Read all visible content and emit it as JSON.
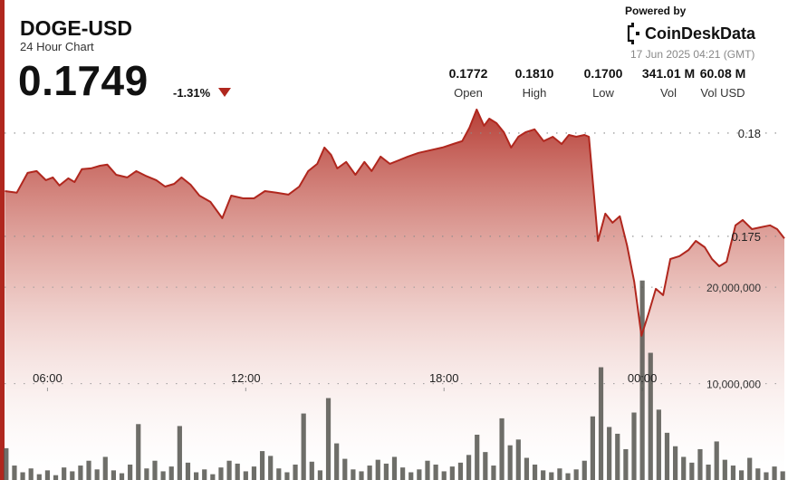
{
  "header": {
    "symbol": "DOGE-USD",
    "subtitle": "24 Hour Chart",
    "price": "0.1749",
    "change": "-1.31%",
    "powered_by": "Powered by",
    "brand": "CoinDeskData",
    "timestamp": "17 Jun 2025 04:21 (GMT)",
    "stats": [
      {
        "value": "0.1772",
        "label": "Open"
      },
      {
        "value": "0.1810",
        "label": "High"
      },
      {
        "value": "0.1700",
        "label": "Low"
      },
      {
        "value": "341.01 M",
        "label": "Vol"
      },
      {
        "value": "60.08 M",
        "label": "Vol USD"
      }
    ]
  },
  "chart_data": [
    {
      "type": "line",
      "color": "#b0271e",
      "x": [
        4.71,
        5.07,
        5.4,
        5.67,
        5.95,
        6.16,
        6.36,
        6.63,
        6.82,
        7.04,
        7.315,
        7.59,
        7.81,
        8.08,
        8.41,
        8.685,
        8.96,
        9.29,
        9.56,
        9.835,
        10.055,
        10.33,
        10.6,
        10.93,
        11.29,
        11.56,
        11.92,
        12.25,
        12.58,
        12.93,
        13.29,
        13.62,
        13.89,
        14.165,
        14.38,
        14.58,
        14.77,
        15.04,
        15.32,
        15.59,
        15.81,
        16.08,
        16.36,
        16.63,
        16.905,
        17.23,
        17.59,
        17.95,
        18.275,
        18.55,
        18.77,
        18.99,
        19.21,
        19.37,
        19.59,
        19.81,
        20.03,
        20.25,
        20.47,
        20.74,
        21.015,
        21.29,
        21.56,
        21.78,
        22.0,
        22.25,
        22.385,
        22.66,
        22.88,
        23.1,
        23.32,
        23.54,
        23.755,
        23.975,
        24.19,
        24.41,
        24.63,
        24.85,
        25.125,
        25.4,
        25.62,
        25.89,
        26.11,
        26.33,
        26.55,
        26.82,
        27.04,
        27.32,
        27.59,
        27.865,
        28.08,
        28.3
      ],
      "values": [
        0.17719,
        0.17711,
        0.17807,
        0.17816,
        0.17772,
        0.17785,
        0.17746,
        0.17781,
        0.17763,
        0.17825,
        0.17829,
        0.17842,
        0.17847,
        0.17798,
        0.17785,
        0.17816,
        0.17794,
        0.17772,
        0.17741,
        0.17754,
        0.17785,
        0.1775,
        0.17697,
        0.17667,
        0.17588,
        0.17697,
        0.17684,
        0.17684,
        0.17719,
        0.17711,
        0.17702,
        0.17741,
        0.17816,
        0.17851,
        0.1793,
        0.17895,
        0.17829,
        0.1786,
        0.17798,
        0.1786,
        0.17816,
        0.17886,
        0.17851,
        0.17868,
        0.17886,
        0.17904,
        0.17917,
        0.1793,
        0.17947,
        0.17961,
        0.18026,
        0.18114,
        0.18035,
        0.1807,
        0.18048,
        0.18004,
        0.1793,
        0.17982,
        0.18004,
        0.18018,
        0.17961,
        0.17982,
        0.17947,
        0.17991,
        0.17982,
        0.17991,
        0.17982,
        0.17478,
        0.1761,
        0.17566,
        0.17597,
        0.17456,
        0.17281,
        0.17018,
        0.17127,
        0.17246,
        0.17215,
        0.1739,
        0.17404,
        0.17434,
        0.17478,
        0.17447,
        0.1739,
        0.17355,
        0.17377,
        0.17553,
        0.17579,
        0.17535,
        0.17544,
        0.17553,
        0.17535,
        0.1749
      ],
      "xlim": [
        4.7,
        28.3
      ],
      "xticks": [
        {
          "value": 6,
          "label": "06:00"
        },
        {
          "value": 12,
          "label": "12:00"
        },
        {
          "value": 18,
          "label": "18:00"
        },
        {
          "value": 24,
          "label": "00:00"
        }
      ],
      "ylim": [
        0.1632,
        0.1814
      ],
      "yticks": [
        0.175,
        0.18
      ],
      "grid": true
    },
    {
      "type": "bar",
      "color": "#55554f",
      "x": [
        4.75,
        5,
        5.25,
        5.5,
        5.75,
        6,
        6.25,
        6.5,
        6.75,
        7,
        7.25,
        7.5,
        7.75,
        8,
        8.25,
        8.5,
        8.75,
        9,
        9.25,
        9.5,
        9.75,
        10,
        10.25,
        10.5,
        10.75,
        11,
        11.25,
        11.5,
        11.75,
        12,
        12.25,
        12.5,
        12.75,
        13,
        13.25,
        13.5,
        13.75,
        14,
        14.25,
        14.5,
        14.75,
        15,
        15.25,
        15.5,
        15.75,
        16,
        16.25,
        16.5,
        16.75,
        17,
        17.25,
        17.5,
        17.75,
        18,
        18.25,
        18.5,
        18.75,
        19,
        19.25,
        19.5,
        19.75,
        20,
        20.25,
        20.5,
        20.75,
        21,
        21.25,
        21.5,
        21.75,
        22,
        22.25,
        22.5,
        22.75,
        23,
        23.25,
        23.5,
        23.75,
        24,
        24.25,
        24.5,
        24.75,
        25,
        25.25,
        25.5,
        25.75,
        26,
        26.25,
        26.5,
        26.75,
        27,
        27.25,
        27.5,
        27.75,
        28,
        28.25
      ],
      "values": [
        3300000,
        1500000,
        800000,
        1200000,
        600000,
        1000000,
        500000,
        1300000,
        900000,
        1500000,
        2000000,
        1100000,
        2400000,
        1000000,
        700000,
        1600000,
        5800000,
        1200000,
        2000000,
        900000,
        1400000,
        5600000,
        1800000,
        800000,
        1100000,
        600000,
        1300000,
        2000000,
        1700000,
        900000,
        1400000,
        3000000,
        2500000,
        1200000,
        800000,
        1600000,
        6900000,
        1900000,
        1000000,
        8500000,
        3800000,
        2200000,
        1100000,
        900000,
        1500000,
        2100000,
        1700000,
        2400000,
        1300000,
        800000,
        1100000,
        2000000,
        1600000,
        900000,
        1400000,
        1800000,
        2600000,
        4700000,
        2900000,
        1500000,
        6400000,
        3600000,
        4200000,
        2300000,
        1600000,
        1000000,
        800000,
        1200000,
        700000,
        1100000,
        2000000,
        6600000,
        11700000,
        5500000,
        4800000,
        3200000,
        7000000,
        20700000,
        13200000,
        7300000,
        4900000,
        3500000,
        2400000,
        1800000,
        3200000,
        1600000,
        4000000,
        2100000,
        1500000,
        1000000,
        2300000,
        1200000,
        800000,
        1400000,
        900000
      ],
      "xlim": [
        4.7,
        28.3
      ],
      "ylim": [
        0,
        39000000
      ],
      "yticks": [
        {
          "value": 10000000,
          "label": "10,000,000"
        },
        {
          "value": 20000000,
          "label": "20,000,000"
        }
      ],
      "grid": true
    }
  ]
}
